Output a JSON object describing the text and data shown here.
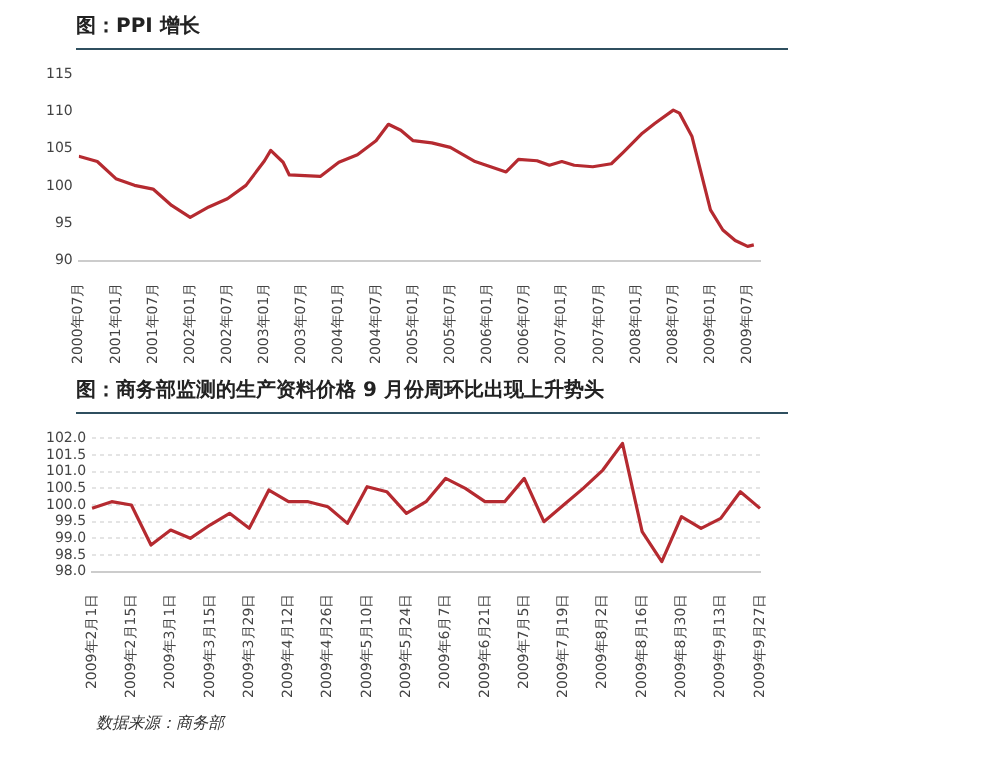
{
  "chart_data": [
    {
      "type": "line",
      "title": "图：PPI 增长",
      "grid": false,
      "legend": false,
      "marker": "none",
      "x": [
        "2000-07",
        "2000-10",
        "2001-01",
        "2001-04",
        "2001-07",
        "2001-10",
        "2002-01",
        "2002-04",
        "2002-07",
        "2002-10",
        "2003-01",
        "2003-02",
        "2003-04",
        "2003-05",
        "2003-10",
        "2004-01",
        "2004-04",
        "2004-07",
        "2004-09",
        "2004-11",
        "2005-01",
        "2005-04",
        "2005-07",
        "2005-11",
        "2006-04",
        "2006-06",
        "2006-09",
        "2006-11",
        "2007-01",
        "2007-03",
        "2007-06",
        "2007-09",
        "2007-11",
        "2008-02",
        "2008-04",
        "2008-07",
        "2008-08",
        "2008-10",
        "2008-12",
        "2009-01",
        "2009-03",
        "2009-05",
        "2009-07",
        "2009-08"
      ],
      "series": [
        {
          "color": "#b52a30",
          "values": [
            104.0,
            103.3,
            101.0,
            100.1,
            99.6,
            97.4,
            95.8,
            97.2,
            98.3,
            100.1,
            103.4,
            104.8,
            103.2,
            101.5,
            101.3,
            103.2,
            104.2,
            106.1,
            108.3,
            107.5,
            106.1,
            105.8,
            105.2,
            103.3,
            101.9,
            103.6,
            103.4,
            102.8,
            103.3,
            102.8,
            102.6,
            103.0,
            104.6,
            107.1,
            108.4,
            110.2,
            109.8,
            106.7,
            100.1,
            96.8,
            94.1,
            92.7,
            91.9,
            92.1
          ]
        }
      ],
      "xlim": [
        "2000-07",
        "2009-09"
      ],
      "xticks": [
        {
          "value": "2000-07",
          "label": "2000年07月"
        },
        {
          "value": "2001-01",
          "label": "2001年01月"
        },
        {
          "value": "2001-07",
          "label": "2001年07月"
        },
        {
          "value": "2002-01",
          "label": "2002年01月"
        },
        {
          "value": "2002-07",
          "label": "2002年07月"
        },
        {
          "value": "2003-01",
          "label": "2003年01月"
        },
        {
          "value": "2003-07",
          "label": "2003年07月"
        },
        {
          "value": "2004-01",
          "label": "2004年01月"
        },
        {
          "value": "2004-07",
          "label": "2004年07月"
        },
        {
          "value": "2005-01",
          "label": "2005年01月"
        },
        {
          "value": "2005-07",
          "label": "2005年07月"
        },
        {
          "value": "2006-01",
          "label": "2006年01月"
        },
        {
          "value": "2006-07",
          "label": "2006年07月"
        },
        {
          "value": "2007-01",
          "label": "2007年01月"
        },
        {
          "value": "2007-07",
          "label": "2007年07月"
        },
        {
          "value": "2008-01",
          "label": "2008年01月"
        },
        {
          "value": "2008-07",
          "label": "2008年07月"
        },
        {
          "value": "2009-01",
          "label": "2009年01月"
        },
        {
          "value": "2009-07",
          "label": "2009年07月"
        }
      ],
      "ylim": [
        90,
        115
      ],
      "yticks": [
        90,
        95,
        100,
        105,
        110,
        115
      ]
    },
    {
      "type": "line",
      "title": "图：商务部监测的生产资料价格 9 月份周环比出现上升势头",
      "grid": "y",
      "legend": false,
      "marker": "none",
      "annotations": [
        "数据来源：商务部"
      ],
      "categories": [
        "2009年2月1日",
        null,
        "2009年2月15日",
        null,
        "2009年3月1日",
        null,
        "2009年3月15日",
        null,
        "2009年3月29日",
        null,
        "2009年4月12日",
        null,
        "2009年4月26日",
        null,
        "2009年5月10日",
        null,
        "2009年5月24日",
        null,
        "2009年6月7日",
        null,
        "2009年6月21日",
        null,
        "2009年7月5日",
        null,
        "2009年7月19日",
        null,
        "2009年8月2日",
        null,
        "2009年8月16日",
        null,
        "2009年8月30日",
        null,
        "2009年9月13日",
        null,
        "2009年9月27日"
      ],
      "series": [
        {
          "color": "#b52a30",
          "values": [
            99.9,
            100.1,
            100.0,
            98.8,
            99.25,
            99.0,
            99.4,
            99.75,
            99.3,
            100.45,
            100.1,
            100.1,
            99.95,
            99.45,
            100.55,
            100.4,
            99.75,
            100.1,
            100.8,
            100.5,
            100.1,
            100.1,
            100.8,
            99.5,
            100.0,
            100.5,
            101.05,
            101.85,
            99.2,
            98.3,
            99.65,
            99.3,
            99.6,
            100.4,
            99.9
          ]
        }
      ],
      "ylim": [
        98.0,
        102.0
      ],
      "yticks": [
        {
          "value": 98,
          "label": "98.0"
        },
        {
          "value": 98.5,
          "label": "98.5"
        },
        {
          "value": 99,
          "label": "99.0"
        },
        {
          "value": 99.5,
          "label": "99.5"
        },
        {
          "value": 100,
          "label": "100.0"
        },
        {
          "value": 100.5,
          "label": "100.5"
        },
        {
          "value": 101,
          "label": "101.0"
        },
        {
          "value": 101.5,
          "label": "101.5"
        },
        {
          "value": 102,
          "label": "102.0"
        }
      ]
    }
  ]
}
